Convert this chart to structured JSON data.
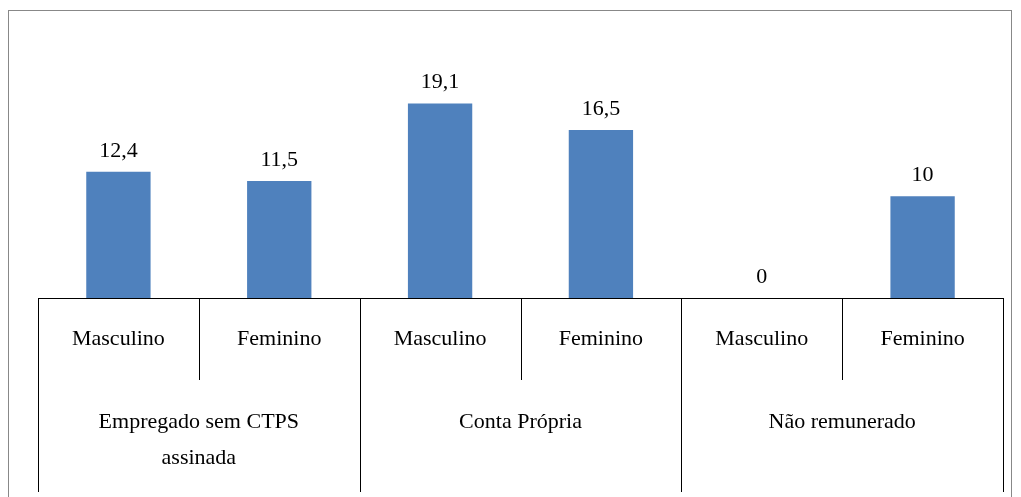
{
  "chart_data": {
    "type": "bar",
    "categories": [
      "Masculino",
      "Feminino",
      "Masculino",
      "Feminino",
      "Masculino",
      "Feminino"
    ],
    "values": [
      12.4,
      11.5,
      19.1,
      16.5,
      0,
      10
    ],
    "value_labels": [
      "12,4",
      "11,5",
      "19,1",
      "16,5",
      "0",
      "10"
    ],
    "color": "#4f81bd",
    "annotations": [
      "Empregado sem CTPS assinada",
      "Conta Própria",
      "Não remunerado"
    ],
    "legend": false
  }
}
